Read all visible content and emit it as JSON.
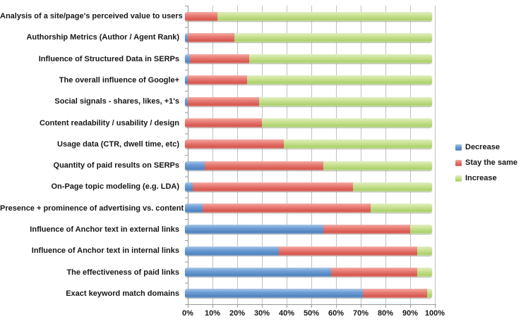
{
  "chart_data": {
    "type": "bar",
    "orientation": "horizontal",
    "stacked": true,
    "stack_total": 100,
    "title": "",
    "xlabel": "",
    "ylabel": "",
    "xlim": [
      0,
      100
    ],
    "grid": "vertical",
    "legend_position": "right",
    "categories": [
      "Analysis of a site/page's perceived value to users",
      "Authorship Metrics (Author / Agent Rank)",
      "Influence of Structured Data in SERPs",
      "The overall influence of Google+",
      "Social signals - shares, likes, +1's",
      "Content readability / usability / design",
      "Usage data (CTR, dwell time, etc)",
      "Quantity of paid results on SERPs",
      "On-Page topic modeling (e.g. LDA)",
      "Presence + prominence of advertising vs. content",
      "Influence of Anchor text in external links",
      "Influence of Anchor text in internal links",
      "The effectiveness of paid links",
      "Exact keyword match domains"
    ],
    "series": [
      {
        "name": "Decrease",
        "color": "#5b90cb",
        "gradient": [
          "#a9c6e6",
          "#6f9fd6",
          "#4f82bd",
          "#86abd4"
        ],
        "values": [
          0,
          1,
          2,
          1,
          1,
          0,
          0,
          8,
          3,
          7,
          56,
          38,
          59,
          72
        ]
      },
      {
        "name": "Stay the same",
        "color": "#e16960",
        "gradient": [
          "#f2aca6",
          "#e87d75",
          "#d4554d",
          "#e49790"
        ],
        "values": [
          13,
          19,
          24,
          24,
          29,
          31,
          40,
          48,
          65,
          68,
          35,
          56,
          35,
          26
        ]
      },
      {
        "name": "Increase",
        "color": "#c0dc85",
        "gradient": [
          "#e0efc0",
          "#cbe294",
          "#abd06b",
          "#cfe3a4"
        ],
        "values": [
          87,
          80,
          74,
          75,
          70,
          69,
          60,
          44,
          32,
          25,
          9,
          6,
          6,
          2
        ]
      }
    ],
    "x_ticks": [
      "0%",
      "10%",
      "20%",
      "30%",
      "40%",
      "50%",
      "60%",
      "70%",
      "80%",
      "90%",
      "100%"
    ]
  }
}
